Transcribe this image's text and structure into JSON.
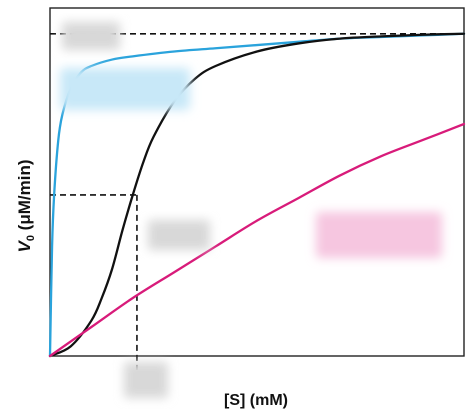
{
  "chart_data": {
    "type": "line",
    "title": "",
    "xlabel": "[S] (mM)",
    "ylabel_main": "V",
    "ylabel_sub": "0",
    "ylabel_units": " (μM/min)",
    "grid": false,
    "legend": "none",
    "xlim": [
      0,
      10
    ],
    "ylim": [
      0,
      1.08
    ],
    "vmax": 1.0,
    "half_vmax": 0.5,
    "half_vmax_substrate": 2.1,
    "series": [
      {
        "color": "#2aa3dc",
        "x": [
          0,
          0.05,
          0.1,
          0.2,
          0.3,
          0.5,
          0.75,
          1,
          1.5,
          2,
          3,
          4,
          5,
          6,
          7,
          8,
          9,
          10
        ],
        "y": [
          0,
          0.34,
          0.5,
          0.67,
          0.75,
          0.83,
          0.88,
          0.9,
          0.92,
          0.93,
          0.945,
          0.955,
          0.965,
          0.975,
          0.985,
          0.99,
          0.995,
          1.0
        ]
      },
      {
        "color": "#111111",
        "x": [
          0,
          0.5,
          1,
          1.25,
          1.5,
          1.75,
          2,
          2.25,
          2.5,
          3,
          3.5,
          4,
          5,
          6,
          7,
          8,
          9,
          10
        ],
        "y": [
          0,
          0.03,
          0.11,
          0.18,
          0.27,
          0.39,
          0.5,
          0.6,
          0.68,
          0.79,
          0.86,
          0.9,
          0.945,
          0.97,
          0.985,
          0.992,
          0.997,
          1.0
        ]
      },
      {
        "color": "#d81b7a",
        "x": [
          0,
          1,
          2,
          3,
          4,
          5,
          6,
          7,
          8,
          9,
          10
        ],
        "y": [
          0,
          0.09,
          0.18,
          0.26,
          0.34,
          0.42,
          0.49,
          0.56,
          0.62,
          0.67,
          0.72
        ]
      }
    ],
    "hidden_labels": [
      {
        "color": "#d8d8d8",
        "anchor": "top-left"
      },
      {
        "color": "#c8e8f8",
        "anchor": "blue-curve"
      },
      {
        "color": "#d8d8d8",
        "anchor": "half-vmax-drop"
      },
      {
        "color": "#f6c6e0",
        "anchor": "magenta-curve"
      },
      {
        "color": "#d8d8d8",
        "anchor": "x-axis"
      }
    ]
  }
}
